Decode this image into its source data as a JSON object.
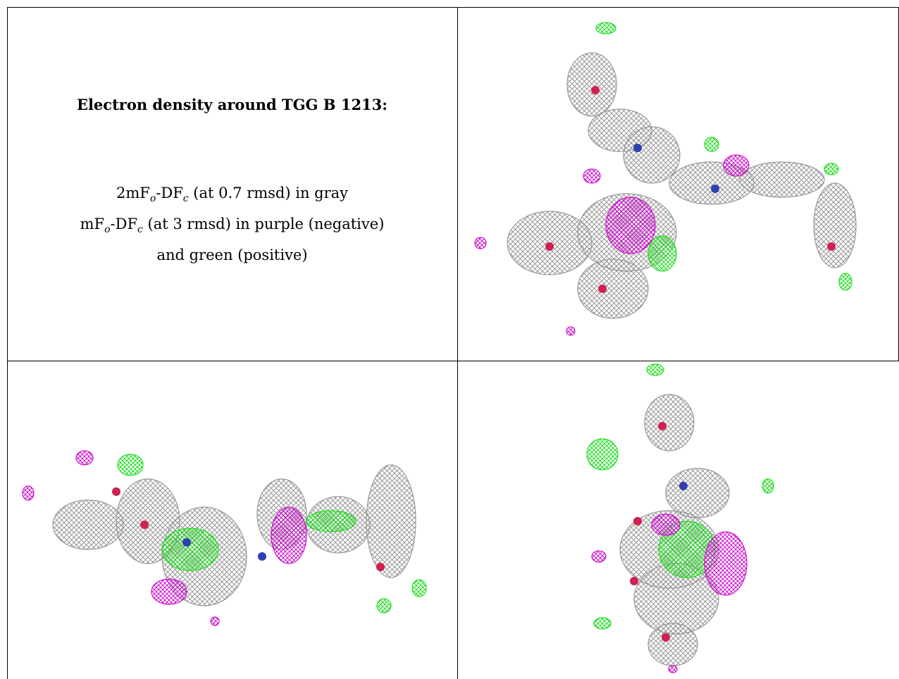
{
  "caption": {
    "title": "Electron density around TGG B 1213:",
    "lines": [
      {
        "parts": [
          {
            "text": "2mF"
          },
          {
            "text": "o",
            "sub": true
          },
          {
            "text": "-DF"
          },
          {
            "text": "c",
            "sub": true
          },
          {
            "text": " (at 0.7 rmsd) in gray"
          }
        ]
      },
      {
        "parts": [
          {
            "text": "mF"
          },
          {
            "text": "o",
            "sub": true
          },
          {
            "text": "-DF"
          },
          {
            "text": "c",
            "sub": true
          },
          {
            "text": " (at 3 rmsd) in purple (negative)"
          }
        ]
      },
      {
        "parts": [
          {
            "text": "and green (positive)"
          }
        ]
      }
    ]
  }
}
